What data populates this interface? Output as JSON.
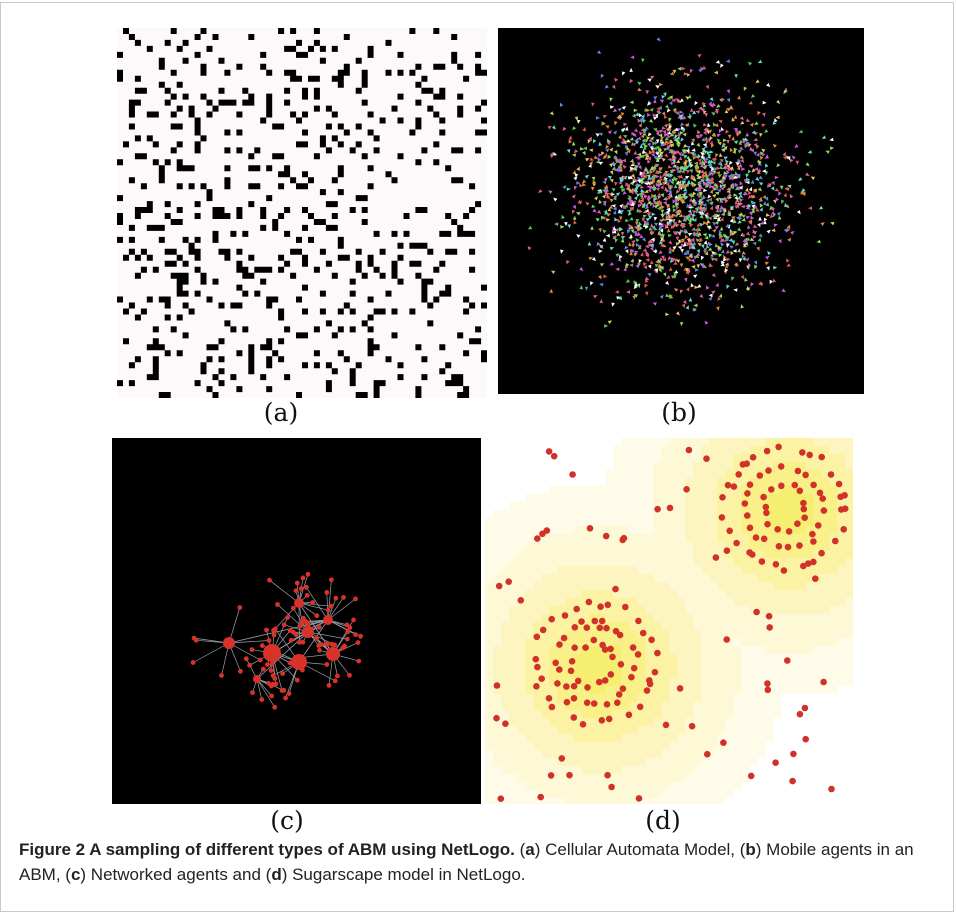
{
  "panels": {
    "a": {
      "label": "(a)"
    },
    "b": {
      "label": "(b)"
    },
    "c": {
      "label": "(c)"
    },
    "d": {
      "label": "(d)"
    }
  },
  "caption": {
    "title": "Figure 2 A sampling of different types of ABM using NetLogo.",
    "p1": " (",
    "a": "a",
    "t1": ") Cellular Automata Model, (",
    "b": "b",
    "t2": ") Mobile agents in an ABM, (",
    "c": "c",
    "t3": ") Networked agents and (",
    "d": "d",
    "t4": ") Sugarscape model in NetLogo."
  },
  "colors": {
    "ca_background": "#fdf8fa",
    "ca_cell": "#000000",
    "dark_background": "#000000",
    "network_node": "#d8322b",
    "network_link": "#9aa3ad",
    "sugar_low": "#fefbe8",
    "sugar_mid": "#fdf5c0",
    "sugar_high": "#f6ee70",
    "sugar_agent": "#d0322a"
  }
}
